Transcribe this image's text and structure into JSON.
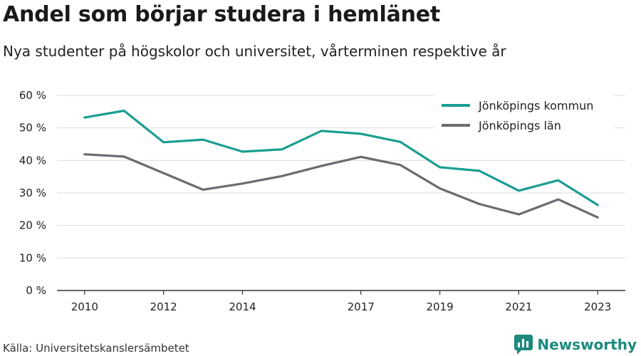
{
  "title": "Andel som börjar studera i hemlänet",
  "subtitle": "Nya studenter på högskolor och universitet, vårterminen respektive år",
  "source": "Källa: Universitetskanslersämbetet",
  "brand": "Newsworthy",
  "colors": {
    "series1": "#1a9e91",
    "series2": "#6b6b72",
    "grid": "#dcdcdc",
    "axis": "#333333",
    "brand": "#1e8a7e"
  },
  "chart_data": {
    "type": "line",
    "title": "Andel som börjar studera i hemlänet",
    "xlabel": "",
    "ylabel": "",
    "ylim": [
      0,
      60
    ],
    "xlim": [
      2009.3,
      2023.7
    ],
    "yticks": [
      {
        "value": 0,
        "label": "0 %"
      },
      {
        "value": 10,
        "label": "10 %"
      },
      {
        "value": 20,
        "label": "20 %"
      },
      {
        "value": 30,
        "label": "30 %"
      },
      {
        "value": 40,
        "label": "40 %"
      },
      {
        "value": 50,
        "label": "50 %"
      },
      {
        "value": 60,
        "label": "60 %"
      }
    ],
    "xticks": [
      {
        "value": 2010,
        "label": "2010"
      },
      {
        "value": 2012,
        "label": "2012"
      },
      {
        "value": 2014,
        "label": "2014"
      },
      {
        "value": 2017,
        "label": "2017"
      },
      {
        "value": 2019,
        "label": "2019"
      },
      {
        "value": 2021,
        "label": "2021"
      },
      {
        "value": 2023,
        "label": "2023"
      }
    ],
    "x": [
      2010,
      2011,
      2012,
      2013,
      2014,
      2015,
      2016,
      2017,
      2018,
      2019,
      2020,
      2021,
      2022,
      2023
    ],
    "series": [
      {
        "name": "Jönköpings kommun",
        "color": "#1a9e91",
        "values": [
          53.2,
          55.3,
          45.6,
          46.4,
          42.7,
          43.4,
          49.1,
          48.2,
          45.7,
          37.9,
          36.8,
          30.7,
          33.9,
          26.3
        ]
      },
      {
        "name": "Jönköpings län",
        "color": "#6b6b72",
        "values": [
          41.9,
          41.2,
          36.1,
          31.0,
          32.9,
          35.2,
          38.3,
          41.1,
          38.6,
          31.4,
          26.6,
          23.4,
          28.0,
          22.5
        ]
      }
    ],
    "grid": true,
    "legend": "top-right"
  }
}
